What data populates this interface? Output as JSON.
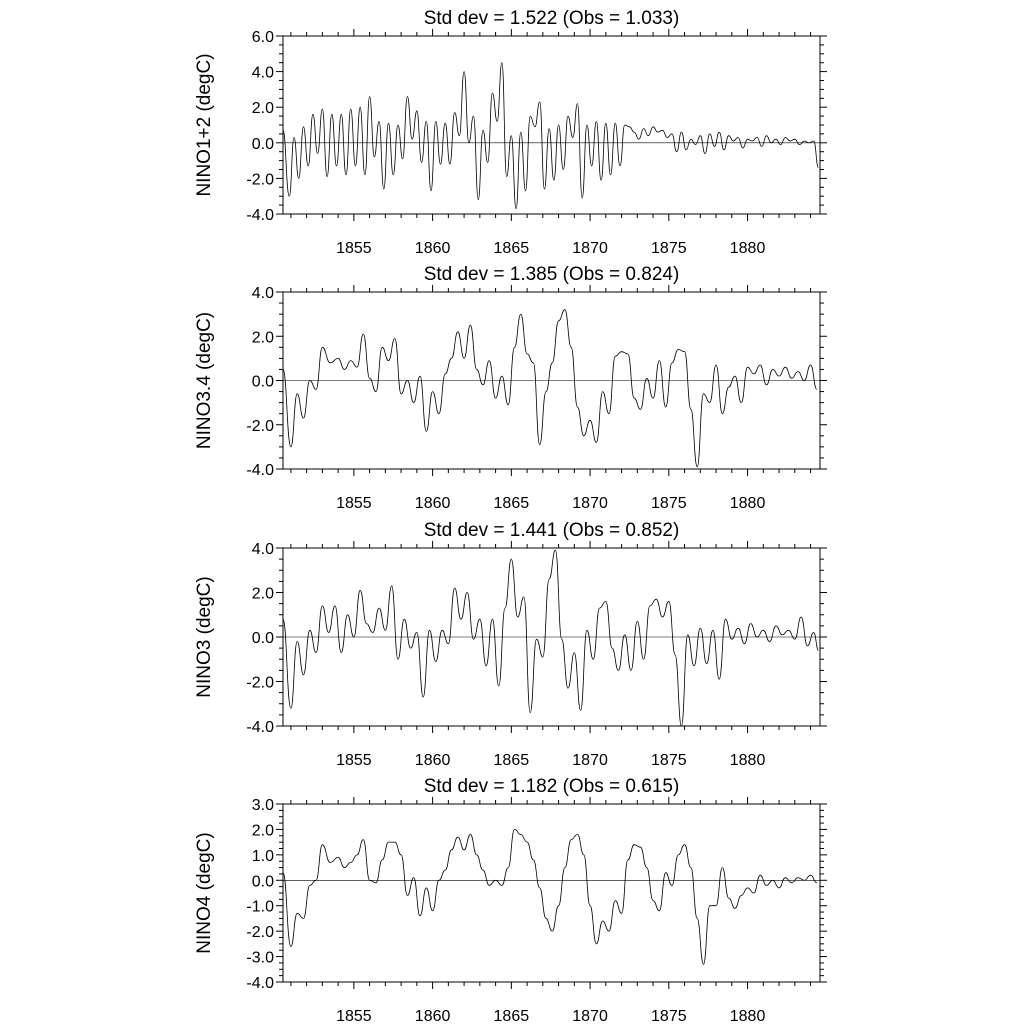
{
  "chart_data": [
    {
      "type": "line",
      "title": "Std dev = 1.522 (Obs = 1.033)",
      "ylabel": "NINO1+2 (degC)",
      "xlabel": "",
      "xlim": [
        1850.5,
        1884.6
      ],
      "ylim": [
        -4.0,
        6.0
      ],
      "yticks": [
        -4.0,
        -2.0,
        0.0,
        2.0,
        4.0,
        6.0
      ],
      "ytick_labels": [
        "-4.0",
        "-2.0",
        "0.0",
        "2.0",
        "4.0",
        "6.0"
      ],
      "xticks": [
        1855,
        1860,
        1865,
        1870,
        1875,
        1880
      ],
      "xtick_labels": [
        "1855",
        "1860",
        "1865",
        "1870",
        "1875",
        "1880"
      ],
      "reference_line": 0.0,
      "series": [
        {
          "name": "NINO1+2",
          "x": [
            1850.5,
            1850.9,
            1851.2,
            1851.5,
            1851.8,
            1852.1,
            1852.4,
            1852.7,
            1853.0,
            1853.3,
            1853.6,
            1853.9,
            1854.2,
            1854.5,
            1854.8,
            1855.1,
            1855.4,
            1855.7,
            1856.0,
            1856.3,
            1856.6,
            1856.9,
            1857.2,
            1857.5,
            1857.8,
            1858.1,
            1858.4,
            1858.7,
            1859.0,
            1859.3,
            1859.6,
            1859.9,
            1860.2,
            1860.5,
            1860.8,
            1861.1,
            1861.4,
            1861.7,
            1862.0,
            1862.3,
            1862.6,
            1862.9,
            1863.2,
            1863.5,
            1863.8,
            1864.1,
            1864.4,
            1864.7,
            1865.0,
            1865.3,
            1865.6,
            1865.9,
            1866.2,
            1866.5,
            1866.8,
            1867.1,
            1867.4,
            1867.7,
            1868.0,
            1868.3,
            1868.6,
            1868.9,
            1869.2,
            1869.5,
            1869.8,
            1870.1,
            1870.4,
            1870.7,
            1871.0,
            1871.3,
            1871.6,
            1871.9,
            1872.2,
            1872.5,
            1872.8,
            1873.1,
            1873.4,
            1873.7,
            1874.0,
            1874.3,
            1874.6,
            1874.9,
            1875.2,
            1875.5,
            1875.8,
            1876.1,
            1876.4,
            1876.7,
            1877.0,
            1877.3,
            1877.6,
            1877.9,
            1878.2,
            1878.5,
            1878.8,
            1879.1,
            1879.4,
            1879.7,
            1880.0,
            1880.3,
            1880.6,
            1880.9,
            1881.2,
            1881.5,
            1881.8,
            1882.1,
            1882.4,
            1882.7,
            1883.0,
            1883.3,
            1883.6,
            1883.9,
            1884.2,
            1884.5
          ],
          "y": [
            0.7,
            -3.0,
            0.3,
            -2.0,
            0.9,
            -1.3,
            1.6,
            -0.6,
            1.9,
            -1.9,
            1.6,
            -1.3,
            1.6,
            -1.8,
            1.9,
            -1.3,
            2.0,
            -1.8,
            2.6,
            -0.8,
            1.2,
            -2.6,
            1.1,
            -1.8,
            1.0,
            -0.9,
            2.6,
            0.2,
            1.8,
            -1.1,
            1.2,
            -2.7,
            1.2,
            -1.2,
            1.1,
            -1.2,
            1.7,
            0.4,
            4.0,
            0.0,
            1.5,
            -3.2,
            0.7,
            -1.1,
            2.8,
            1.2,
            4.5,
            -1.9,
            0.4,
            -3.7,
            0.6,
            -2.7,
            1.5,
            0.9,
            2.3,
            -2.6,
            0.8,
            -2.1,
            1.0,
            -1.5,
            1.5,
            0.3,
            2.2,
            -3.1,
            1.0,
            -1.3,
            1.2,
            -2.1,
            1.1,
            -1.8,
            1.1,
            -1.3,
            1.0,
            0.9,
            0.6,
            0.2,
            0.8,
            0.4,
            0.9,
            0.6,
            0.7,
            0.3,
            0.5,
            -0.5,
            0.6,
            -0.4,
            0.2,
            -0.1,
            0.4,
            -0.6,
            0.5,
            -0.2,
            0.6,
            -0.4,
            0.4,
            0.1,
            0.3,
            -0.3,
            0.2,
            0.1,
            0.3,
            -0.2,
            0.4,
            0.0,
            0.2,
            -0.1,
            0.3,
            0.1,
            0.2,
            -0.1,
            0.1,
            0.0,
            0.1,
            -1.4
          ]
        }
      ]
    },
    {
      "type": "line",
      "title": "Std dev = 1.385 (Obs = 0.824)",
      "ylabel": "NINO3.4 (degC)",
      "xlabel": "",
      "xlim": [
        1850.5,
        1884.6
      ],
      "ylim": [
        -4.0,
        4.0
      ],
      "yticks": [
        -4.0,
        -2.0,
        0.0,
        2.0,
        4.0
      ],
      "ytick_labels": [
        "-4.0",
        "-2.0",
        "0.0",
        "2.0",
        "4.0"
      ],
      "xticks": [
        1855,
        1860,
        1865,
        1870,
        1875,
        1880
      ],
      "xtick_labels": [
        "1855",
        "1860",
        "1865",
        "1870",
        "1875",
        "1880"
      ],
      "reference_line": 0.0,
      "series": [
        {
          "name": "NINO3.4",
          "x": [
            1850.5,
            1851.0,
            1851.4,
            1851.8,
            1852.2,
            1852.6,
            1853.0,
            1853.5,
            1854.0,
            1854.4,
            1854.8,
            1855.2,
            1855.6,
            1856.0,
            1856.4,
            1856.8,
            1857.2,
            1857.6,
            1858.0,
            1858.4,
            1858.8,
            1859.2,
            1859.6,
            1860.0,
            1860.4,
            1860.8,
            1861.2,
            1861.6,
            1862.0,
            1862.4,
            1862.8,
            1863.2,
            1863.6,
            1864.0,
            1864.4,
            1864.8,
            1865.2,
            1865.6,
            1866.0,
            1866.4,
            1866.8,
            1867.2,
            1867.6,
            1868.0,
            1868.4,
            1868.8,
            1869.2,
            1869.6,
            1870.0,
            1870.4,
            1870.8,
            1871.2,
            1871.6,
            1872.0,
            1872.4,
            1872.8,
            1873.2,
            1873.6,
            1874.0,
            1874.4,
            1874.8,
            1875.2,
            1875.6,
            1876.0,
            1876.4,
            1876.8,
            1877.2,
            1877.6,
            1878.0,
            1878.4,
            1878.8,
            1879.2,
            1879.6,
            1880.0,
            1880.4,
            1880.8,
            1881.2,
            1881.6,
            1882.0,
            1882.4,
            1882.8,
            1883.2,
            1883.6,
            1884.0,
            1884.4
          ],
          "y": [
            0.5,
            -3.0,
            -0.6,
            -1.7,
            0.0,
            -0.4,
            1.5,
            0.8,
            1.0,
            0.5,
            0.9,
            0.6,
            2.1,
            0.1,
            -0.5,
            1.5,
            0.9,
            1.9,
            -0.6,
            0.0,
            -1.0,
            0.2,
            -2.3,
            -0.5,
            -1.5,
            0.3,
            1.0,
            2.2,
            1.0,
            2.5,
            0.5,
            -0.2,
            0.9,
            -0.8,
            0.2,
            -1.1,
            1.5,
            3.0,
            1.2,
            0.8,
            -2.9,
            -0.5,
            0.8,
            2.7,
            3.2,
            1.5,
            -1.2,
            -2.5,
            -1.8,
            -2.8,
            -0.5,
            -1.5,
            1.1,
            1.3,
            1.2,
            -0.8,
            -1.3,
            0.1,
            -0.8,
            0.9,
            -1.2,
            0.8,
            1.4,
            1.3,
            -1.3,
            -3.9,
            -0.6,
            -1.0,
            0.7,
            -1.5,
            -0.3,
            0.2,
            -1.0,
            0.6,
            0.3,
            0.7,
            -0.2,
            0.5,
            0.2,
            0.6,
            0.1,
            0.4,
            0.0,
            0.7,
            -0.4
          ]
        }
      ]
    },
    {
      "type": "line",
      "title": "Std dev = 1.441 (Obs = 0.852)",
      "ylabel": "NINO3 (degC)",
      "xlabel": "",
      "xlim": [
        1850.5,
        1884.6
      ],
      "ylim": [
        -4.0,
        4.0
      ],
      "yticks": [
        -4.0,
        -2.0,
        0.0,
        2.0,
        4.0
      ],
      "ytick_labels": [
        "-4.0",
        "-2.0",
        "0.0",
        "2.0",
        "4.0"
      ],
      "xticks": [
        1855,
        1860,
        1865,
        1870,
        1875,
        1880
      ],
      "xtick_labels": [
        "1855",
        "1860",
        "1865",
        "1870",
        "1875",
        "1880"
      ],
      "reference_line": 0.0,
      "series": [
        {
          "name": "NINO3",
          "x": [
            1850.5,
            1851.0,
            1851.4,
            1851.8,
            1852.2,
            1852.6,
            1853.0,
            1853.4,
            1853.8,
            1854.2,
            1854.6,
            1855.0,
            1855.4,
            1855.8,
            1856.2,
            1856.6,
            1857.0,
            1857.4,
            1857.8,
            1858.2,
            1858.6,
            1859.0,
            1859.4,
            1859.8,
            1860.2,
            1860.6,
            1861.0,
            1861.4,
            1861.8,
            1862.2,
            1862.6,
            1863.0,
            1863.4,
            1863.8,
            1864.2,
            1864.6,
            1865.0,
            1865.4,
            1865.8,
            1866.2,
            1866.6,
            1867.0,
            1867.4,
            1867.8,
            1868.2,
            1868.6,
            1869.0,
            1869.4,
            1869.8,
            1870.2,
            1870.6,
            1871.0,
            1871.4,
            1871.8,
            1872.2,
            1872.6,
            1873.0,
            1873.4,
            1873.8,
            1874.2,
            1874.6,
            1875.0,
            1875.4,
            1875.8,
            1876.2,
            1876.6,
            1877.0,
            1877.4,
            1877.8,
            1878.2,
            1878.6,
            1879.0,
            1879.4,
            1879.8,
            1880.2,
            1880.6,
            1881.0,
            1881.4,
            1881.8,
            1882.2,
            1882.6,
            1883.0,
            1883.4,
            1883.8,
            1884.2,
            1884.5
          ],
          "y": [
            0.8,
            -3.2,
            -0.2,
            -1.7,
            0.3,
            -0.7,
            1.4,
            0.2,
            1.4,
            -0.7,
            1.0,
            0.0,
            2.1,
            0.6,
            0.2,
            1.3,
            0.3,
            2.3,
            -1.0,
            0.8,
            -0.5,
            0.2,
            -2.7,
            0.3,
            -1.1,
            0.3,
            -0.3,
            2.2,
            0.8,
            2.0,
            -0.1,
            0.8,
            -1.3,
            0.8,
            -2.2,
            1.3,
            3.5,
            0.9,
            1.8,
            -3.4,
            -0.1,
            -0.9,
            2.6,
            3.9,
            -0.1,
            -2.3,
            -0.7,
            -3.3,
            0.3,
            -1.0,
            1.3,
            1.6,
            -0.5,
            -1.5,
            0.1,
            -1.5,
            0.7,
            -1.0,
            1.4,
            1.7,
            0.9,
            1.6,
            -0.8,
            -4.0,
            0.1,
            -1.3,
            0.4,
            -1.2,
            0.3,
            -1.9,
            0.8,
            -0.1,
            0.4,
            -0.3,
            0.6,
            0.0,
            0.3,
            -0.2,
            0.5,
            0.1,
            0.3,
            -0.1,
            0.9,
            -0.4,
            0.2,
            -0.6
          ]
        }
      ]
    },
    {
      "type": "line",
      "title": "Std dev = 1.182 (Obs = 0.615)",
      "ylabel": "NINO4 (degC)",
      "xlabel": "",
      "xlim": [
        1850.5,
        1884.6
      ],
      "ylim": [
        -4.0,
        3.0
      ],
      "yticks": [
        -4.0,
        -3.0,
        -2.0,
        -1.0,
        0.0,
        1.0,
        2.0,
        3.0
      ],
      "ytick_labels": [
        "-4.0",
        "-3.0",
        "-2.0",
        "-1.0",
        "0.0",
        "1.0",
        "2.0",
        "3.0"
      ],
      "xticks": [
        1855,
        1860,
        1865,
        1870,
        1875,
        1880
      ],
      "xtick_labels": [
        "1855",
        "1860",
        "1865",
        "1870",
        "1875",
        "1880"
      ],
      "reference_line": 0.0,
      "series": [
        {
          "name": "NINO4",
          "x": [
            1850.5,
            1851.0,
            1851.4,
            1851.8,
            1852.2,
            1852.6,
            1853.0,
            1853.5,
            1854.0,
            1854.4,
            1854.8,
            1855.2,
            1855.6,
            1856.0,
            1856.4,
            1856.8,
            1857.2,
            1857.6,
            1858.0,
            1858.4,
            1858.8,
            1859.2,
            1859.6,
            1860.0,
            1860.4,
            1860.8,
            1861.2,
            1861.6,
            1862.0,
            1862.4,
            1862.8,
            1863.2,
            1863.6,
            1864.0,
            1864.4,
            1864.8,
            1865.2,
            1865.6,
            1866.0,
            1866.4,
            1866.8,
            1867.2,
            1867.6,
            1868.0,
            1868.4,
            1868.8,
            1869.2,
            1869.6,
            1870.0,
            1870.4,
            1870.8,
            1871.2,
            1871.6,
            1872.0,
            1872.4,
            1872.8,
            1873.2,
            1873.6,
            1874.0,
            1874.4,
            1874.8,
            1875.2,
            1875.6,
            1876.0,
            1876.4,
            1876.8,
            1877.2,
            1877.6,
            1878.0,
            1878.4,
            1878.8,
            1879.2,
            1879.6,
            1880.0,
            1880.4,
            1880.8,
            1881.2,
            1881.6,
            1882.0,
            1882.4,
            1882.8,
            1883.2,
            1883.6,
            1884.0,
            1884.4
          ],
          "y": [
            0.3,
            -2.6,
            -1.3,
            -1.5,
            -0.2,
            0.0,
            1.4,
            0.7,
            0.9,
            0.5,
            0.7,
            1.0,
            1.6,
            0.0,
            -0.1,
            0.8,
            1.5,
            1.5,
            1.0,
            -0.6,
            0.1,
            -1.4,
            -0.3,
            -1.2,
            0.0,
            0.4,
            1.2,
            1.7,
            1.2,
            1.8,
            1.0,
            0.4,
            -0.2,
            0.0,
            -0.2,
            0.5,
            2.0,
            1.8,
            1.5,
            0.8,
            -0.3,
            -1.5,
            -2.0,
            -1.0,
            0.5,
            1.6,
            1.8,
            1.0,
            -1.0,
            -2.5,
            -1.6,
            -2.0,
            -0.8,
            -1.3,
            0.8,
            1.4,
            1.3,
            0.5,
            -0.8,
            -1.2,
            0.3,
            -0.2,
            1.0,
            1.4,
            0.5,
            -1.5,
            -3.3,
            -1.0,
            -1.0,
            0.5,
            -0.7,
            -1.1,
            -0.6,
            -0.3,
            -0.5,
            0.2,
            -0.2,
            0.0,
            -0.3,
            0.1,
            -0.1,
            0.1,
            0.0,
            0.2,
            -0.1
          ]
        }
      ]
    }
  ]
}
